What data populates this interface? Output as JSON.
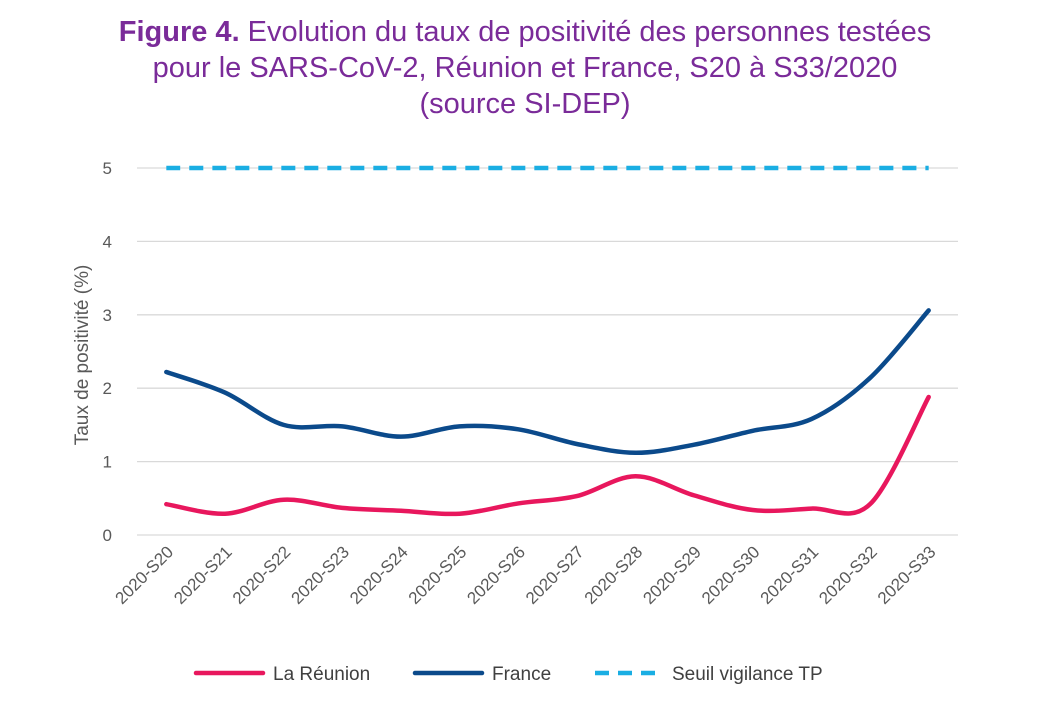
{
  "title": {
    "bold_prefix": "Figure 4.",
    "line1_rest": " Evolution du taux de positivité des personnes testées",
    "line2": "pour le SARS-CoV-2, Réunion et France, S20 à S33/2020",
    "line3": "(source SI-DEP)"
  },
  "chart_data": {
    "type": "line",
    "categories": [
      "2020-S20",
      "2020-S21",
      "2020-S22",
      "2020-S23",
      "2020-S24",
      "2020-S25",
      "2020-S26",
      "2020-S27",
      "2020-S28",
      "2020-S29",
      "2020-S30",
      "2020-S31",
      "2020-S32",
      "2020-S33"
    ],
    "series": [
      {
        "name": "La Réunion",
        "color": "#e8175d",
        "style": "solid",
        "values": [
          0.42,
          0.29,
          0.48,
          0.37,
          0.33,
          0.29,
          0.43,
          0.53,
          0.8,
          0.54,
          0.34,
          0.36,
          0.42,
          1.88
        ]
      },
      {
        "name": "France",
        "color": "#0b4a8b",
        "style": "solid",
        "values": [
          2.22,
          1.94,
          1.5,
          1.48,
          1.34,
          1.48,
          1.44,
          1.24,
          1.12,
          1.23,
          1.42,
          1.58,
          2.14,
          3.06
        ]
      },
      {
        "name": "Seuil vigilance TP",
        "color": "#1aaee3",
        "style": "dashed",
        "values": [
          5,
          5,
          5,
          5,
          5,
          5,
          5,
          5,
          5,
          5,
          5,
          5,
          5,
          5
        ]
      }
    ],
    "ylabel": "Taux de positivité (%)",
    "xlabel": "",
    "ylim": [
      0,
      5
    ],
    "yticks": [
      0,
      1,
      2,
      3,
      4,
      5
    ],
    "grid": true,
    "legend_position": "bottom"
  }
}
